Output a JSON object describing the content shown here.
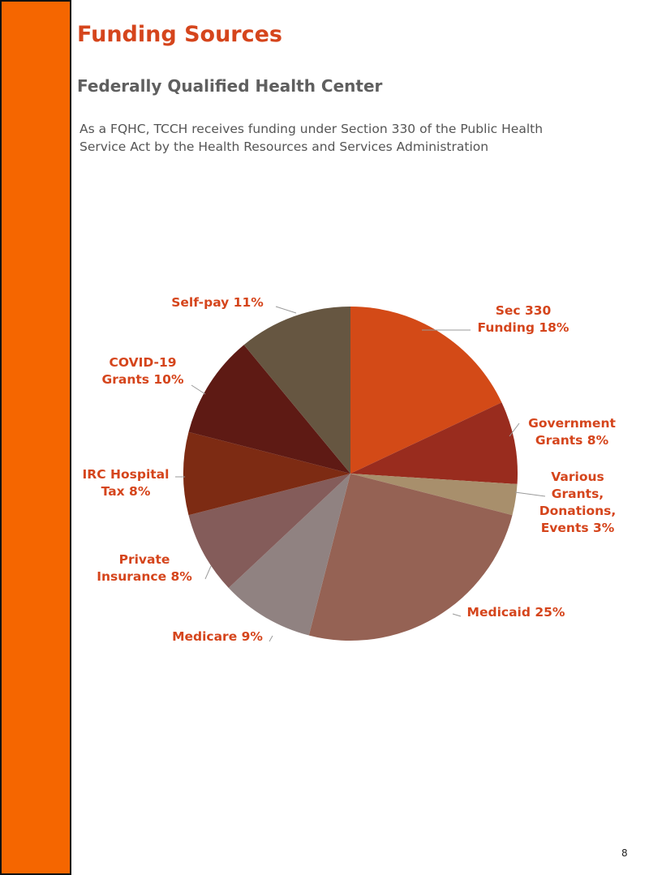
{
  "page": {
    "title": "Funding Sources",
    "subtitle": "Federally Qualified Health Center",
    "intro_lines": [
      "As a FQHC, TCCH receives funding under Section 330 of the Public Health",
      "Service Act by the Health Resources and Services Administration"
    ],
    "page_number": "8",
    "accent_color": "#F56600"
  },
  "chart_data": {
    "type": "pie",
    "start": "12 o'clock, clockwise",
    "slices": [
      {
        "label": "Sec 330 Funding",
        "label_lines": [
          "Sec 330",
          "Funding 18%"
        ],
        "value": 18,
        "color": "#D34A17"
      },
      {
        "label": "Government Grants",
        "label_lines": [
          "Government",
          "Grants 8%"
        ],
        "value": 8,
        "color": "#992C1E"
      },
      {
        "label": "Various Grants, Donations, Events",
        "label_lines": [
          "Various",
          "Grants,",
          "Donations,",
          "Events 3%"
        ],
        "value": 3,
        "color": "#A88F6C"
      },
      {
        "label": "Medicaid",
        "label_lines": [
          "Medicaid 25%"
        ],
        "value": 25,
        "color": "#956254"
      },
      {
        "label": "Medicare",
        "label_lines": [
          "Medicare 9%"
        ],
        "value": 9,
        "color": "#908281"
      },
      {
        "label": "Private Insurance",
        "label_lines": [
          "Private",
          "Insurance 8%"
        ],
        "value": 8,
        "color": "#845C5A"
      },
      {
        "label": "IRC Hospital Tax",
        "label_lines": [
          "IRC Hospital",
          "Tax 8%"
        ],
        "value": 8,
        "color": "#7D2B13"
      },
      {
        "label": "COVID-19 Grants",
        "label_lines": [
          "COVID-19",
          "Grants 10%"
        ],
        "value": 10,
        "color": "#5E1A14"
      },
      {
        "label": "Self-pay",
        "label_lines": [
          "Self-pay 11%"
        ],
        "value": 11,
        "color": "#665641"
      }
    ]
  }
}
